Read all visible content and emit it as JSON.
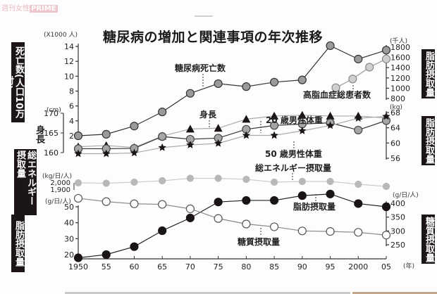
{
  "watermark": {
    "text": "週刊女性",
    "brand": "PRIME"
  },
  "chart_data": {
    "type": "line",
    "title": "糖尿病の増加と関連事項の年次推移",
    "x": [
      1950,
      1955,
      1960,
      1965,
      1970,
      1975,
      1980,
      1985,
      1990,
      1995,
      2000,
      2005
    ],
    "x_tick_labels": [
      "1950",
      "55",
      "60",
      "65",
      "70",
      "75",
      "80",
      "85",
      "90",
      "95",
      "2000",
      "05"
    ],
    "x_unit": "(年)",
    "series": [
      {
        "name": "糖尿病死亡数",
        "axis": "死亡数(人口10万対)",
        "unit": "(X1000 人)",
        "marker": "dark-gray-circle",
        "values": [
          2.0,
          2.2,
          3.3,
          5.2,
          7.7,
          9.0,
          8.6,
          9.2,
          9.5,
          14.1,
          12.3,
          13.5
        ]
      },
      {
        "name": "高脂血症総患者数",
        "axis": "right",
        "unit": "(千人)",
        "marker": "light-gray-circle",
        "x": [
          1996,
          1999,
          2002,
          2005
        ],
        "values": [
          1010,
          1180,
          1410,
          1570
        ]
      },
      {
        "name": "身長",
        "axis": "身長",
        "unit": "(cm)",
        "marker": "triangle",
        "values": [
          161.5,
          161.8,
          161.3,
          164.2,
          166.0,
          166.2,
          168.5,
          169.3,
          169.5,
          169.3,
          169.3,
          168.8
        ]
      },
      {
        "name": "20歳男性体重",
        "axis": "right",
        "unit": "(kg)",
        "marker": "gray-circle",
        "values": [
          58.5,
          58.5,
          58.6,
          61.7,
          61.0,
          61.3,
          63.6,
          64.6,
          65.0,
          65.3,
          63.4,
          65.9
        ]
      },
      {
        "name": "50歳男性体重",
        "axis": "right",
        "unit": "(kg)",
        "marker": "star",
        "values": [
          57.2,
          57.2,
          57.4,
          58.8,
          59.5,
          59.9,
          62.0,
          62.0,
          63.2,
          64.6,
          66.5,
          67.0
        ]
      },
      {
        "name": "総エネルギー摂取量",
        "axis": "総エネルギー摂取量",
        "unit": "(kg/日/人)",
        "marker": "light-gray-dot",
        "values": [
          2000,
          1995,
          2010,
          2030,
          2065,
          2065,
          2050,
          2010,
          2020,
          2020,
          1980,
          1950
        ]
      },
      {
        "name": "脂肪摂取量",
        "axis": "脂肪摂取量",
        "unit": "(g/日/人)",
        "marker": "black-dot",
        "values": [
          18,
          20,
          25,
          35,
          43,
          53,
          54,
          54,
          57,
          58,
          52,
          50
        ]
      },
      {
        "name": "糖質摂取量",
        "axis": "right",
        "unit": "(g/日/人)",
        "marker": "white-circle",
        "values": [
          418,
          406,
          398,
          396,
          380,
          345,
          325,
          315,
          300,
          298,
          295,
          285
        ]
      }
    ],
    "left_axes": [
      {
        "label": "死亡数(人口10万対)",
        "unit": "(X1000 人)",
        "ticks": [
          2,
          4,
          6,
          8,
          10,
          12,
          14
        ],
        "range": [
          2,
          14
        ]
      },
      {
        "label": "身長",
        "unit": "(cm)",
        "ticks": [
          160,
          165,
          170
        ],
        "range": [
          160,
          170
        ]
      },
      {
        "label": "総エネルギー摂取量",
        "unit": "(kg/日/人)",
        "ticks": [
          "2,000",
          "1,900"
        ],
        "range": [
          1900,
          2000
        ]
      },
      {
        "label": "脂肪摂取量",
        "unit": "(g/日/人)",
        "ticks": [
          20,
          30,
          40,
          50
        ],
        "range": [
          20,
          50
        ]
      }
    ],
    "right_axes": [
      {
        "label": "脂肪摂取量",
        "unit": "(千人)",
        "ticks": [
          1800,
          1600,
          1400,
          1200,
          1000,
          800
        ],
        "range": [
          800,
          1800
        ]
      },
      {
        "label": "脂肪摂取量",
        "unit": "(kg)",
        "ticks": [
          68,
          64,
          60,
          56
        ],
        "range": [
          56,
          68
        ]
      },
      {
        "label": "糖質摂取量",
        "unit": "(g/日/人)",
        "ticks": [
          400,
          350,
          300,
          250
        ],
        "range": [
          250,
          400
        ]
      }
    ],
    "annotations": [
      "糖尿病死亡数",
      "高脂血症総患者数",
      "身長",
      "20 歳男性体重",
      "50 歳男性体重",
      "総エネルギー摂取量",
      "脂肪摂取量",
      "糖質摂取量"
    ],
    "grid": false,
    "legend": "inline-annotations"
  },
  "labels": {
    "left_death": "死亡数(人口10万対)",
    "left_height": "身長",
    "left_energy": "総エネルギー摂取量",
    "left_fat": "脂肪摂取量",
    "right_top": "脂肪摂取量",
    "right_mid": "脂肪摂取量",
    "right_bot": "糖質摂取量",
    "unit_death": "(X1000 人)",
    "unit_cm": "(cm)",
    "unit_energy": "(kg/日/人)",
    "unit_fat": "(g/日/人)",
    "unit_thousand": "(千人)",
    "unit_kg": "(kg)",
    "unit_sugar": "(g/日/人)",
    "unit_year": "(年)"
  }
}
